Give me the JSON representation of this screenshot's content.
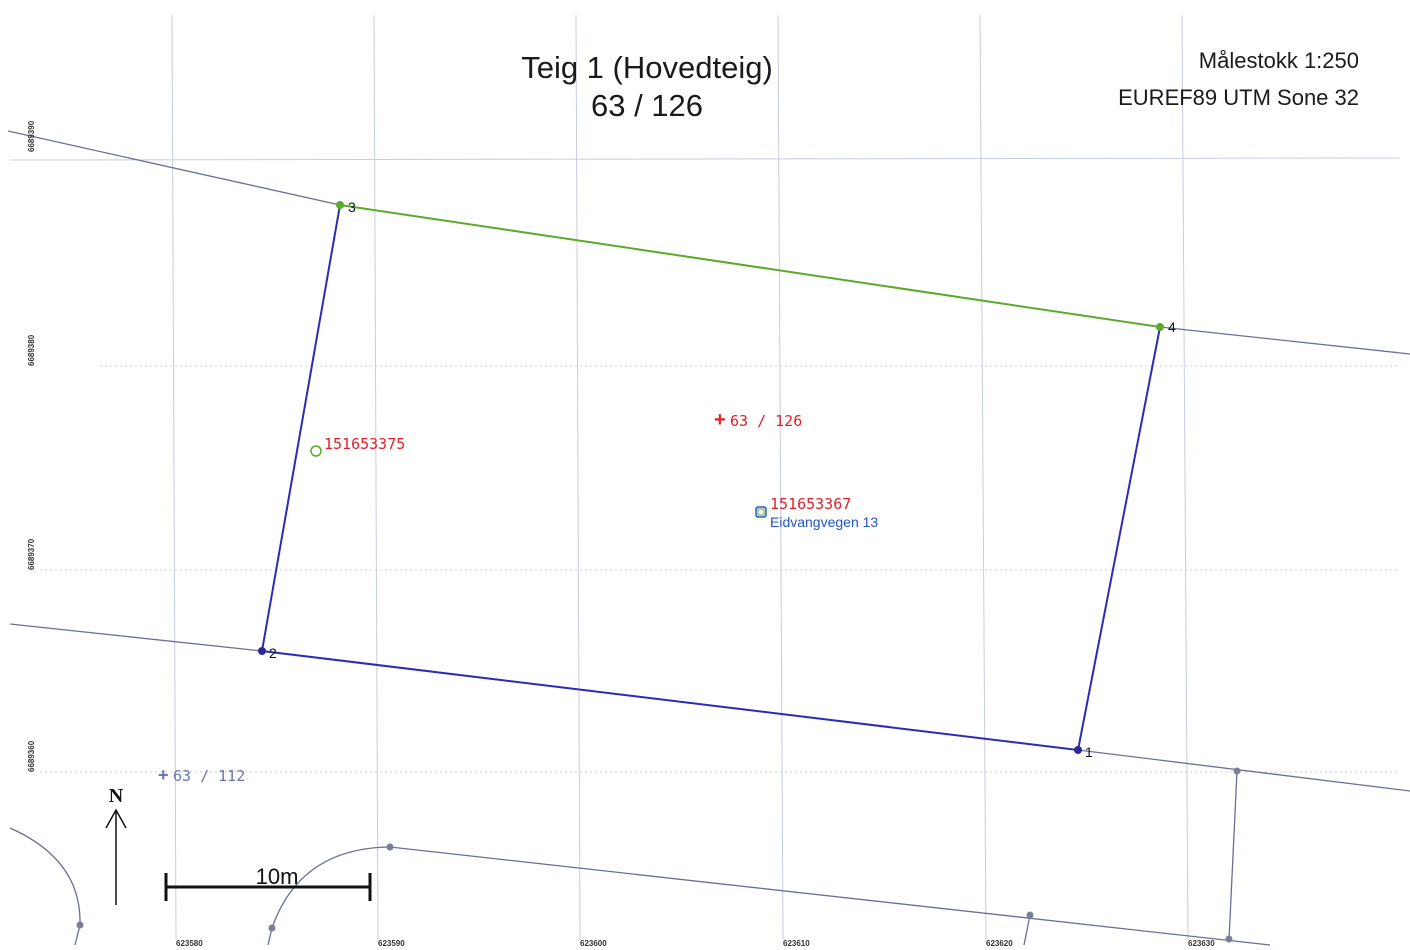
{
  "header": {
    "title_line1": "Teig 1 (Hovedteig)",
    "title_line2": "63 / 126",
    "scale_text": "Målestokk 1:250",
    "crs_text": "EUREF89 UTM Sone 32"
  },
  "grid": {
    "easting_labels": [
      "623580",
      "623590",
      "623600",
      "623610",
      "623620",
      "623630"
    ],
    "northing_labels": [
      "6689390",
      "6689380",
      "6689370",
      "6689360"
    ]
  },
  "parcel": {
    "id_label": "63 / 126",
    "neighbor_label": "63 / 112",
    "points": [
      "1",
      "2",
      "3",
      "4"
    ]
  },
  "markers": {
    "building_id_1": "151653375",
    "building_id_2": "151653367",
    "address": "Eidvangvegen 13"
  },
  "north_arrow": {
    "label": "N"
  },
  "scalebar": {
    "label": "10m"
  },
  "colors": {
    "boundary": "#2b2bb8",
    "boundary_green": "#5aaa2a",
    "neighbor_line": "#6a6f98",
    "grid": "#c8cce0",
    "label_red": "#e0202a",
    "label_blue": "#2255cc",
    "label_gray": "#6a74a8"
  }
}
